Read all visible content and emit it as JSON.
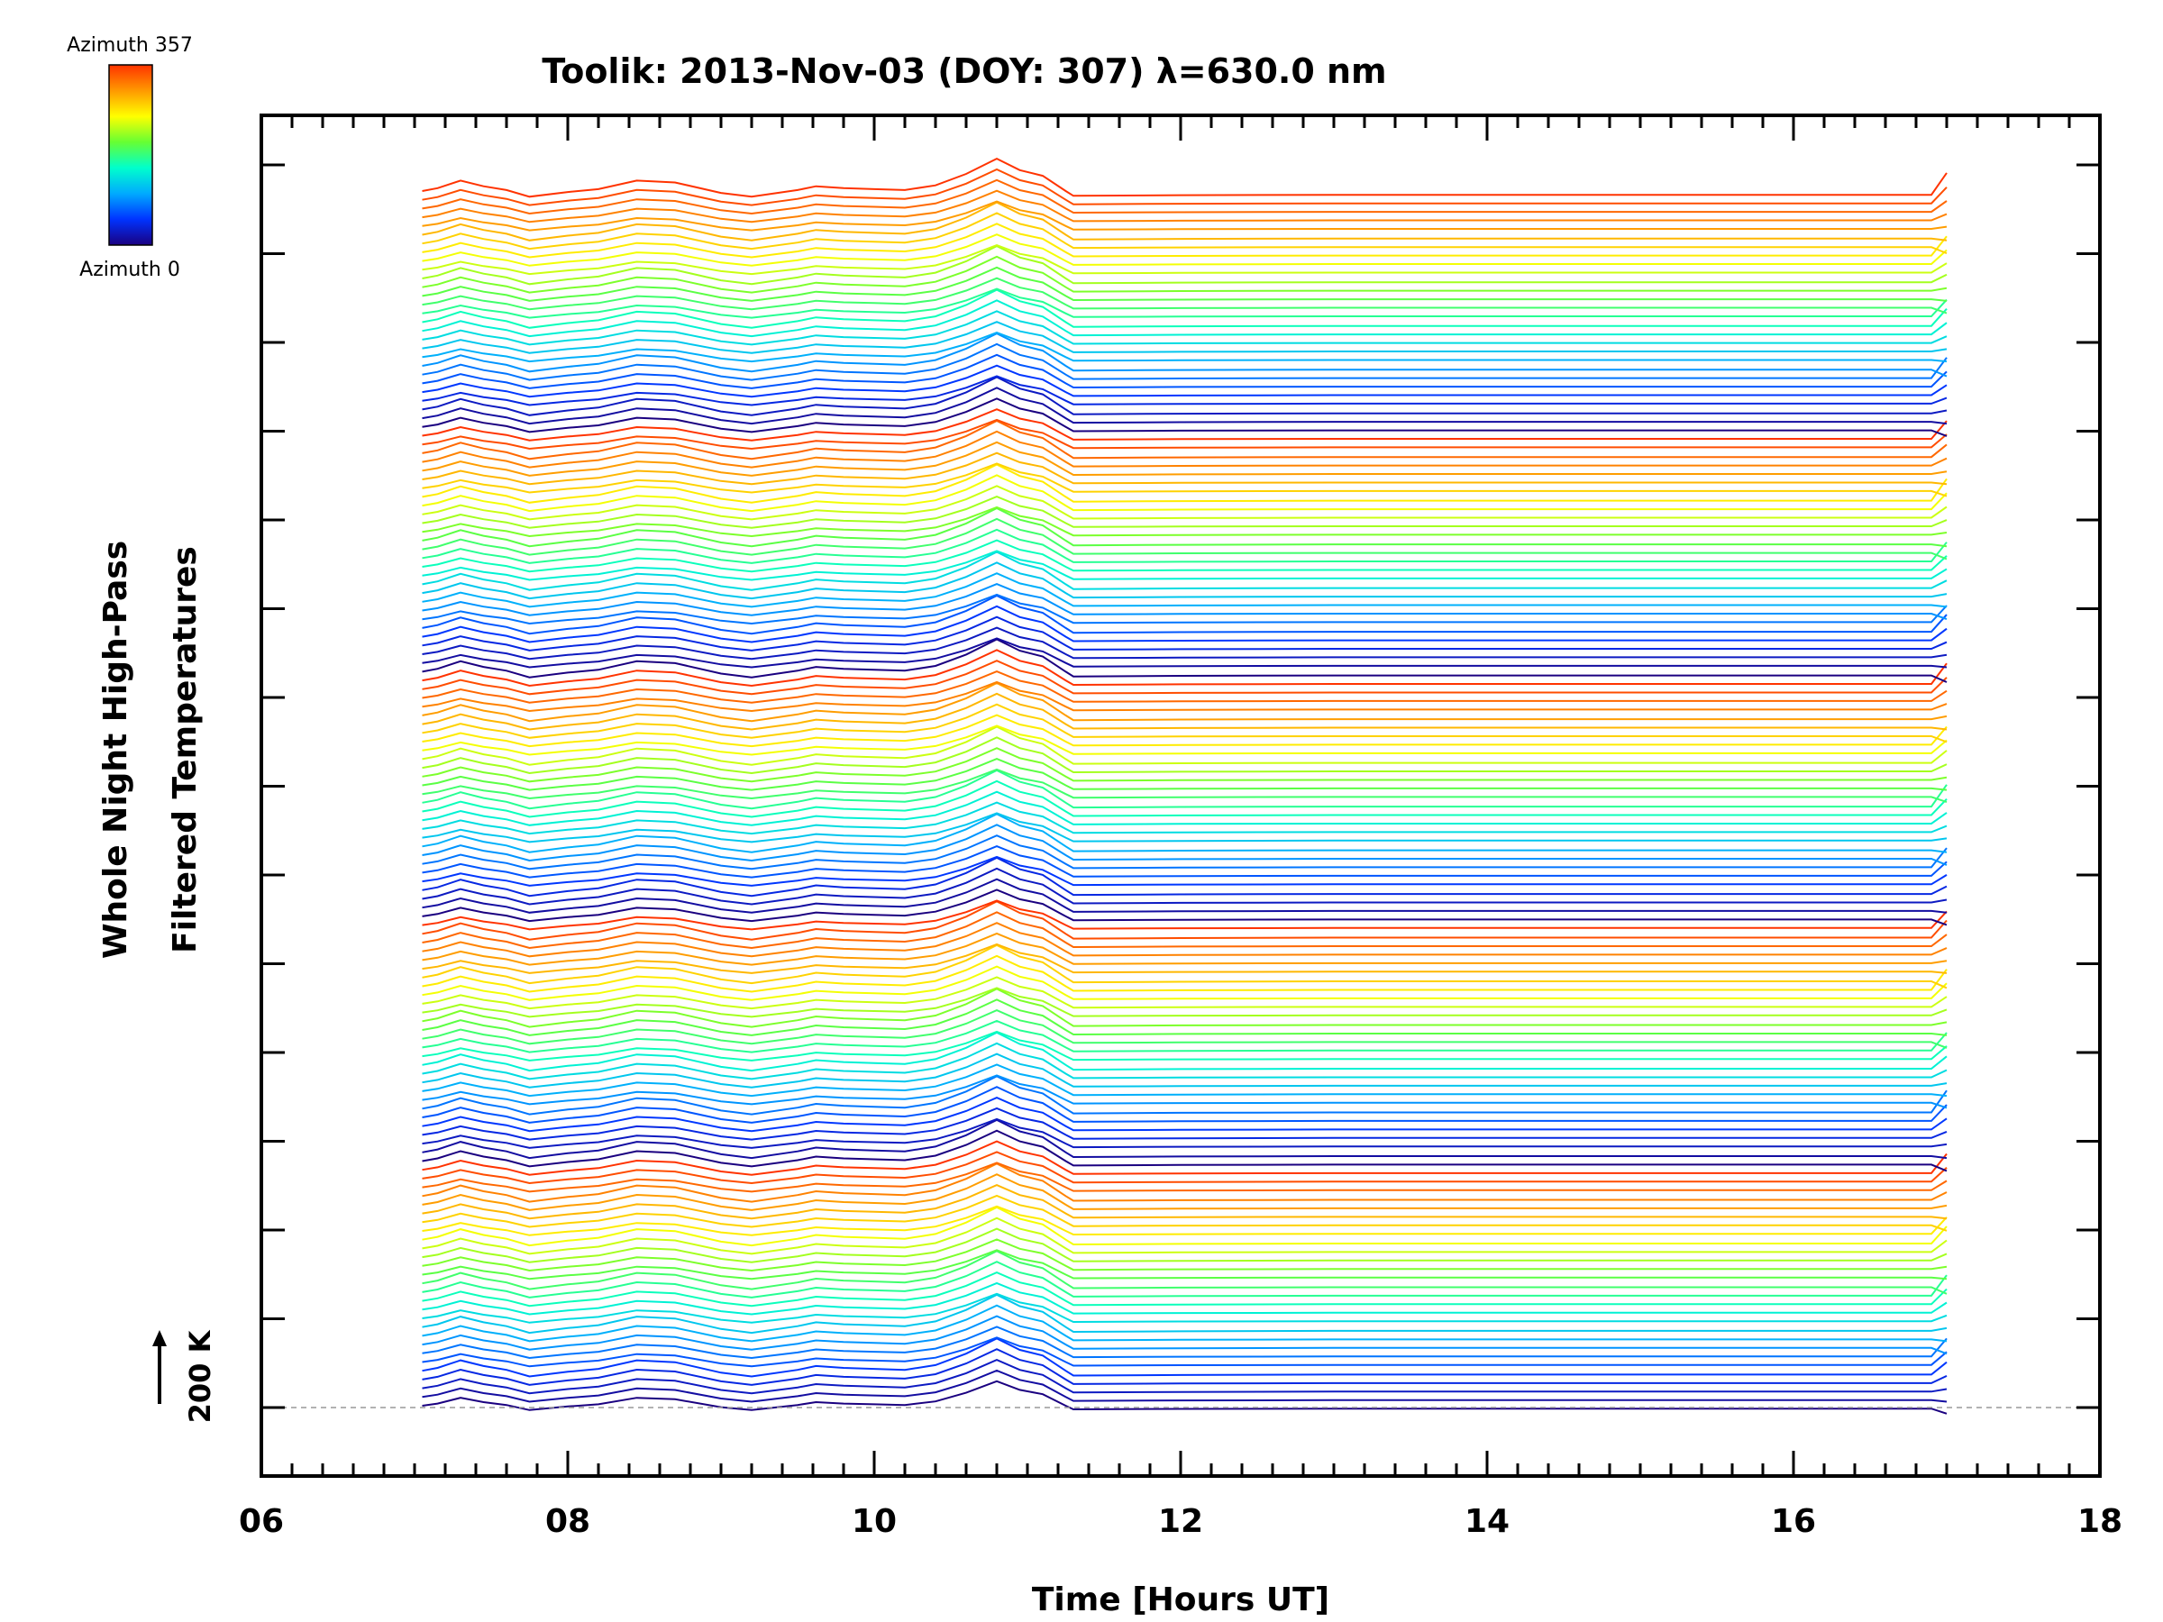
{
  "chart_data": {
    "type": "line",
    "title": "Toolik: 2013-Nov-03 (DOY: 307) λ=630.0 nm",
    "xlabel": "Time [Hours UT]",
    "ylabel_line1": "Whole Night High-Pass",
    "ylabel_line2": "Filtered Temperatures",
    "xlim": [
      6,
      18
    ],
    "x_ticks": [
      "06",
      "08",
      "10",
      "12",
      "14",
      "16",
      "18"
    ],
    "scale_marker": "200 K",
    "colorbar": {
      "top_label": "Azimuth 357",
      "bottom_label": "Azimuth 0",
      "colors": [
        "#ff3300",
        "#ff9900",
        "#ffff00",
        "#66ff33",
        "#00ffcc",
        "#00aaff",
        "#0033ff",
        "#1a0080"
      ]
    },
    "baseline_color": "#999999",
    "series_count": 140,
    "data_start_hour": 7.05,
    "data_end_hour": 17.05,
    "step_change_hour": 11.25,
    "common_profile": {
      "x": [
        7.05,
        7.15,
        7.3,
        7.45,
        7.6,
        7.75,
        8.0,
        8.2,
        8.45,
        8.7,
        9.0,
        9.2,
        9.5,
        9.62,
        9.8,
        10.0,
        10.2,
        10.4,
        10.6,
        10.8,
        10.95,
        11.1,
        11.25,
        11.3,
        12.0,
        13.0,
        14.0,
        15.0,
        16.0,
        16.9,
        17.0
      ],
      "y": [
        0.0,
        0.15,
        0.55,
        0.25,
        0.05,
        -0.3,
        -0.05,
        0.1,
        0.55,
        0.45,
        -0.1,
        -0.3,
        0.05,
        0.25,
        0.15,
        0.1,
        0.05,
        0.3,
        0.9,
        1.7,
        1.1,
        0.8,
        0.0,
        -0.25,
        -0.22,
        -0.2,
        -0.2,
        -0.2,
        -0.2,
        -0.2,
        0.2
      ]
    }
  }
}
